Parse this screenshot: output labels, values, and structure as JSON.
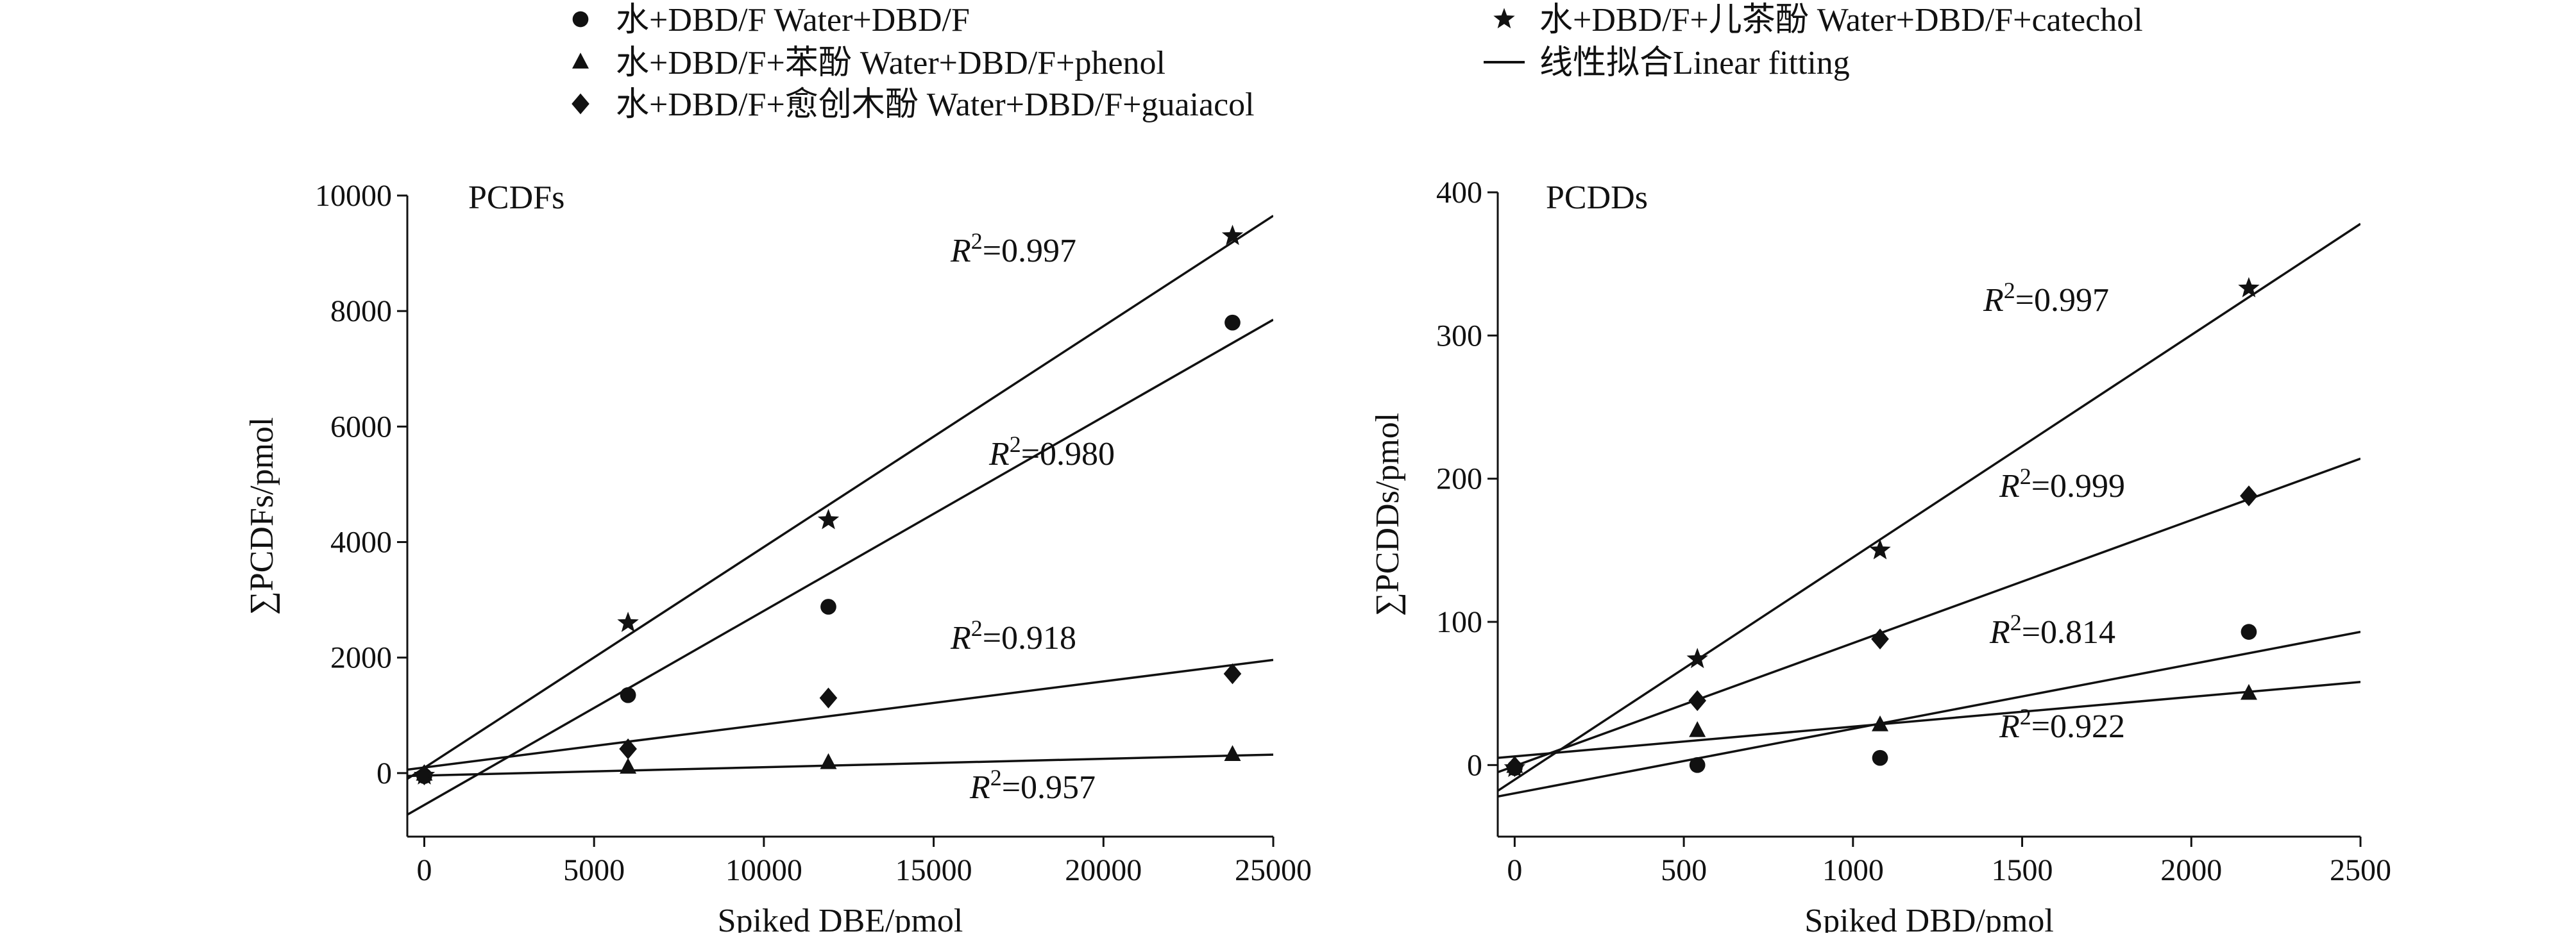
{
  "legend": {
    "items": [
      {
        "marker": "circle",
        "label": "水+DBD/F Water+DBD/F"
      },
      {
        "marker": "triangle",
        "label": "水+DBD/F+苯酚 Water+DBD/F+phenol"
      },
      {
        "marker": "diamond",
        "label": "水+DBD/F+愈创木酚 Water+DBD/F+guaiacol"
      },
      {
        "marker": "star",
        "label": "水+DBD/F+儿茶酚 Water+DBD/F+catechol"
      },
      {
        "marker": "line",
        "label": "线性拟合Linear fitting"
      }
    ]
  },
  "chart_data": [
    {
      "type": "scatter",
      "title": "PCDFs",
      "xlabel": "Spiked DBE/pmol",
      "ylabel": "∑PCDFs/pmol",
      "xlim": [
        -500,
        25000
      ],
      "ylim": [
        -1100,
        10000
      ],
      "xticks": [
        0,
        5000,
        10000,
        15000,
        20000,
        25000
      ],
      "yticks": [
        0,
        2000,
        4000,
        6000,
        8000,
        10000
      ],
      "series": [
        {
          "marker": "circle",
          "x": [
            0,
            6000,
            11900,
            23800
          ],
          "y": [
            -50,
            1350,
            2880,
            7800
          ],
          "fit": {
            "x": [
              -500,
              25000
            ],
            "y": [
              -720,
              7850
            ]
          },
          "r2_label": "0.980"
        },
        {
          "marker": "triangle",
          "x": [
            0,
            6000,
            11900,
            23800
          ],
          "y": [
            -20,
            100,
            180,
            320
          ],
          "fit": {
            "x": [
              -500,
              25000
            ],
            "y": [
              -50,
              320
            ]
          },
          "r2_label": "0.957"
        },
        {
          "marker": "diamond",
          "x": [
            0,
            6000,
            11900,
            23800
          ],
          "y": [
            -30,
            420,
            1300,
            1720
          ],
          "fit": {
            "x": [
              -500,
              25000
            ],
            "y": [
              60,
              1960
            ]
          },
          "r2_label": "0.918"
        },
        {
          "marker": "star",
          "x": [
            0,
            6000,
            11900,
            23800
          ],
          "y": [
            -40,
            2600,
            4380,
            9300
          ],
          "fit": {
            "x": [
              -500,
              25000
            ],
            "y": [
              -100,
              9650
            ]
          },
          "r2_label": "0.997"
        }
      ]
    },
    {
      "type": "scatter",
      "title": "PCDDs",
      "xlabel": "Spiked DBD/pmol",
      "ylabel": "∑PCDDs/pmol",
      "xlim": [
        -50,
        2500
      ],
      "ylim": [
        -50,
        400
      ],
      "xticks": [
        0,
        500,
        1000,
        1500,
        2000,
        2500
      ],
      "yticks": [
        0,
        100,
        200,
        300,
        400
      ],
      "series": [
        {
          "marker": "circle",
          "x": [
            0,
            540,
            1080,
            2170
          ],
          "y": [
            -2,
            0,
            5,
            93
          ],
          "fit": {
            "x": [
              -50,
              2500
            ],
            "y": [
              -22,
              93
            ]
          },
          "r2_label": "0.814"
        },
        {
          "marker": "triangle",
          "x": [
            0,
            540,
            1080,
            2170
          ],
          "y": [
            -1,
            24,
            28,
            50
          ],
          "fit": {
            "x": [
              -50,
              2500
            ],
            "y": [
              5,
              58
            ]
          },
          "r2_label": "0.922"
        },
        {
          "marker": "diamond",
          "x": [
            0,
            540,
            1080,
            2170
          ],
          "y": [
            -1,
            45,
            88,
            188
          ],
          "fit": {
            "x": [
              -50,
              2500
            ],
            "y": [
              -5,
              214
            ]
          },
          "r2_label": "0.999"
        },
        {
          "marker": "star",
          "x": [
            0,
            540,
            1080,
            2170
          ],
          "y": [
            -2,
            74,
            150,
            333
          ],
          "fit": {
            "x": [
              -50,
              2500
            ],
            "y": [
              -18,
              378
            ]
          },
          "r2_label": "0.997"
        }
      ]
    }
  ]
}
